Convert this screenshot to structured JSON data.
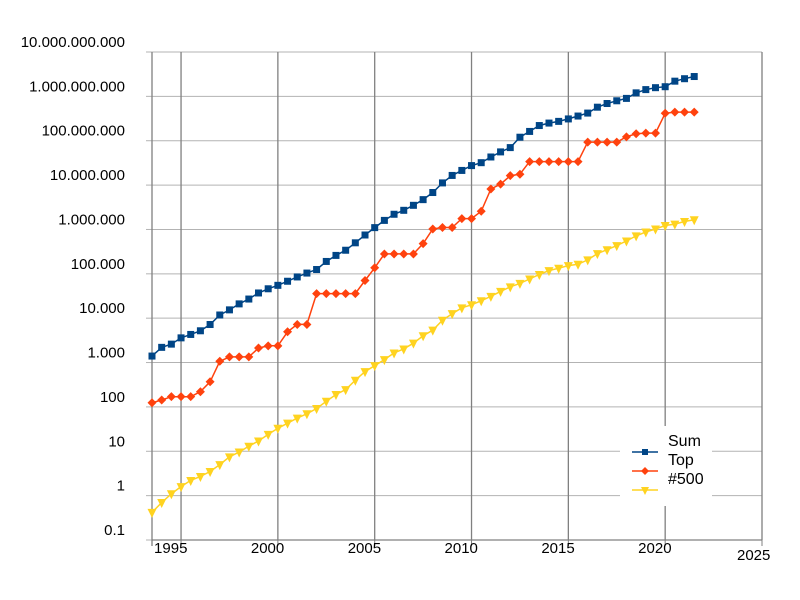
{
  "chart_data": {
    "type": "line",
    "y_scale": "log",
    "ylim": [
      0.1,
      10000000000
    ],
    "xlim": [
      1993.5,
      2025
    ],
    "grid": true,
    "legend_position": "bottom-right",
    "y_ticks": [
      {
        "value": 0.1,
        "label": "0.1"
      },
      {
        "value": 1,
        "label": "1"
      },
      {
        "value": 10,
        "label": "10"
      },
      {
        "value": 100,
        "label": "100"
      },
      {
        "value": 1000,
        "label": "1.000"
      },
      {
        "value": 10000,
        "label": "10.000"
      },
      {
        "value": 100000,
        "label": "100.000"
      },
      {
        "value": 1000000,
        "label": "1.000.000"
      },
      {
        "value": 10000000,
        "label": "10.000.000"
      },
      {
        "value": 100000000,
        "label": "100.000.000"
      },
      {
        "value": 1000000000,
        "label": "1.000.000.000"
      },
      {
        "value": 10000000000,
        "label": "10.000.000.000"
      }
    ],
    "x_ticks": [
      {
        "value": 1995,
        "label": "1995"
      },
      {
        "value": 2000,
        "label": "2000"
      },
      {
        "value": 2005,
        "label": "2005"
      },
      {
        "value": 2010,
        "label": "2010"
      },
      {
        "value": 2015,
        "label": "2015"
      },
      {
        "value": 2020,
        "label": "2020"
      },
      {
        "value": 2025,
        "label": "2025"
      }
    ],
    "x": [
      1993.5,
      1994.0,
      1994.5,
      1995.0,
      1995.5,
      1996.0,
      1996.5,
      1997.0,
      1997.5,
      1998.0,
      1998.5,
      1999.0,
      1999.5,
      2000.0,
      2000.5,
      2001.0,
      2001.5,
      2002.0,
      2002.5,
      2003.0,
      2003.5,
      2004.0,
      2004.5,
      2005.0,
      2005.5,
      2006.0,
      2006.5,
      2007.0,
      2007.5,
      2008.0,
      2008.5,
      2009.0,
      2009.5,
      2010.0,
      2010.5,
      2011.0,
      2011.5,
      2012.0,
      2012.5,
      2013.0,
      2013.5,
      2014.0,
      2014.5,
      2015.0,
      2015.5,
      2016.0,
      2016.5,
      2017.0,
      2017.5,
      2018.0,
      2018.5,
      2019.0,
      2019.5,
      2020.0,
      2020.5,
      2021.0,
      2021.5
    ],
    "series": [
      {
        "name": "Sum",
        "color": "#004586",
        "marker": "square",
        "values": [
          1400,
          2200,
          2600,
          3600,
          4300,
          5200,
          7200,
          11800,
          15400,
          21000,
          27000,
          37000,
          46000,
          55000,
          68000,
          85000,
          104000,
          125000,
          190000,
          260000,
          340000,
          500000,
          750000,
          1100000,
          1600000,
          2200000,
          2700000,
          3500000,
          4700000,
          6800000,
          11200000,
          16500000,
          21400000,
          27500000,
          32000000,
          43000000,
          56000000,
          70000000,
          120000000,
          162000000,
          220000000,
          250000000,
          273000000,
          310000000,
          360000000,
          420000000,
          570000000,
          690000000,
          795000000,
          900000000,
          1200000000,
          1420000000,
          1570000000,
          1650000000,
          2200000000,
          2500000000,
          2800000000
        ]
      },
      {
        "name": "Top",
        "color": "#ff420e",
        "marker": "diamond",
        "values": [
          124,
          143,
          170,
          170,
          170,
          220,
          368,
          1068,
          1338,
          1338,
          1338,
          2121,
          2379,
          2379,
          4938,
          7226,
          7226,
          35860,
          35860,
          35860,
          35860,
          35860,
          70720,
          136800,
          280600,
          280600,
          280600,
          280600,
          478200,
          1026000,
          1105000,
          1105000,
          1759000,
          1759000,
          2566000,
          8162000,
          10510000,
          16320000,
          17590000,
          33860000,
          33860000,
          33860000,
          33860000,
          33860000,
          33860000,
          93010000,
          93010000,
          93010000,
          93010000,
          122300000,
          143500000,
          148600000,
          148600000,
          415500000,
          442000000,
          442000000,
          442000000
        ]
      },
      {
        "name": "#500",
        "color": "#ffd320",
        "marker": "triangle-down",
        "values": [
          0.42,
          0.7,
          1.1,
          1.6,
          2.2,
          2.7,
          3.5,
          5,
          7.5,
          9.6,
          13,
          17,
          24,
          33,
          43,
          56,
          70,
          92,
          134,
          190,
          245,
          400,
          624,
          851,
          1166,
          1646,
          2026,
          2736,
          4005,
          5390,
          9000,
          12640,
          17100,
          20050,
          24670,
          31100,
          40190,
          50900,
          60800,
          76500,
          96600,
          118000,
          133700,
          153400,
          164000,
          206000,
          286000,
          349000,
          432000,
          548000,
          715000,
          874000,
          1022000,
          1230000,
          1320000,
          1510000,
          1650000
        ]
      }
    ]
  }
}
